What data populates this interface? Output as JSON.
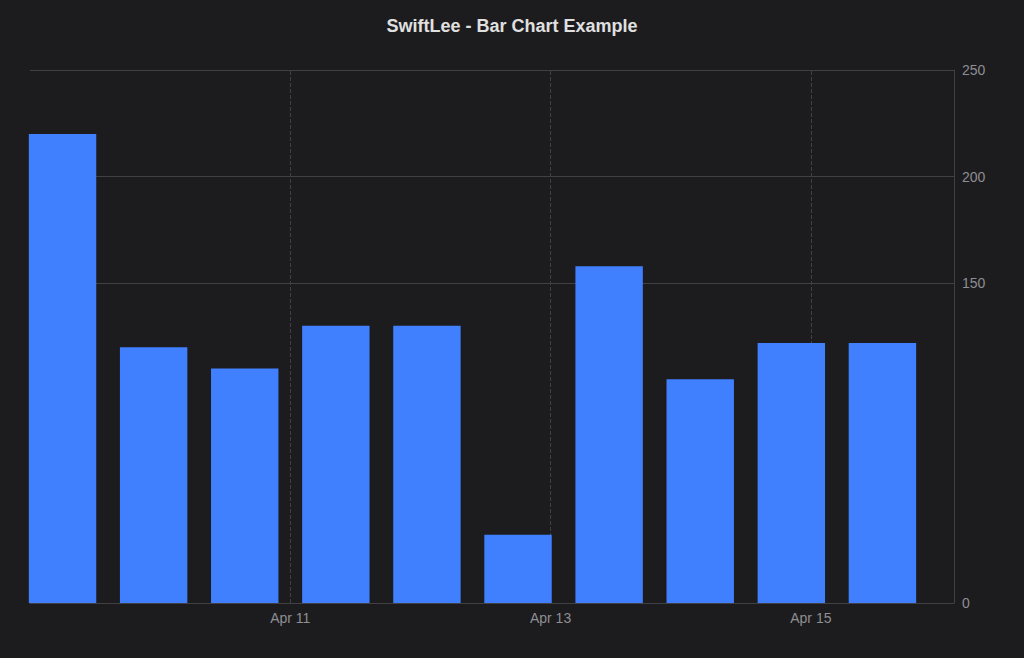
{
  "chart_data": {
    "type": "bar",
    "title": "SwiftLee - Bar Chart Example",
    "x": [
      9.25,
      9.95,
      10.65,
      11.35,
      12.05,
      12.75,
      13.45,
      14.15,
      14.85,
      15.55
    ],
    "values": [
      220,
      120,
      110,
      130,
      130,
      32,
      158,
      105,
      122,
      122
    ],
    "color": "#4080ff",
    "xlim": [
      9.0,
      16.1
    ],
    "xticks": [
      {
        "value": 11.0,
        "label": "Apr 11"
      },
      {
        "value": 13.0,
        "label": "Apr 13"
      },
      {
        "value": 15.0,
        "label": "Apr 15"
      }
    ],
    "ylim": [
      0,
      250
    ],
    "yticks": [
      0,
      150,
      200,
      250
    ],
    "grid": true
  }
}
